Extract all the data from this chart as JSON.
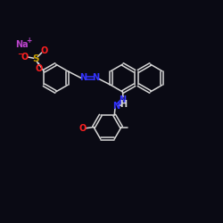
{
  "bg_color": "#0a0a14",
  "bond_color": "#d8d8d8",
  "n_color": "#3333ff",
  "o_color": "#ff2020",
  "s_color": "#c8a000",
  "na_color": "#bb44cc",
  "fig_width": 2.5,
  "fig_height": 2.5,
  "dpi": 100,
  "xlim": [
    0,
    10
  ],
  "ylim": [
    0,
    10
  ]
}
